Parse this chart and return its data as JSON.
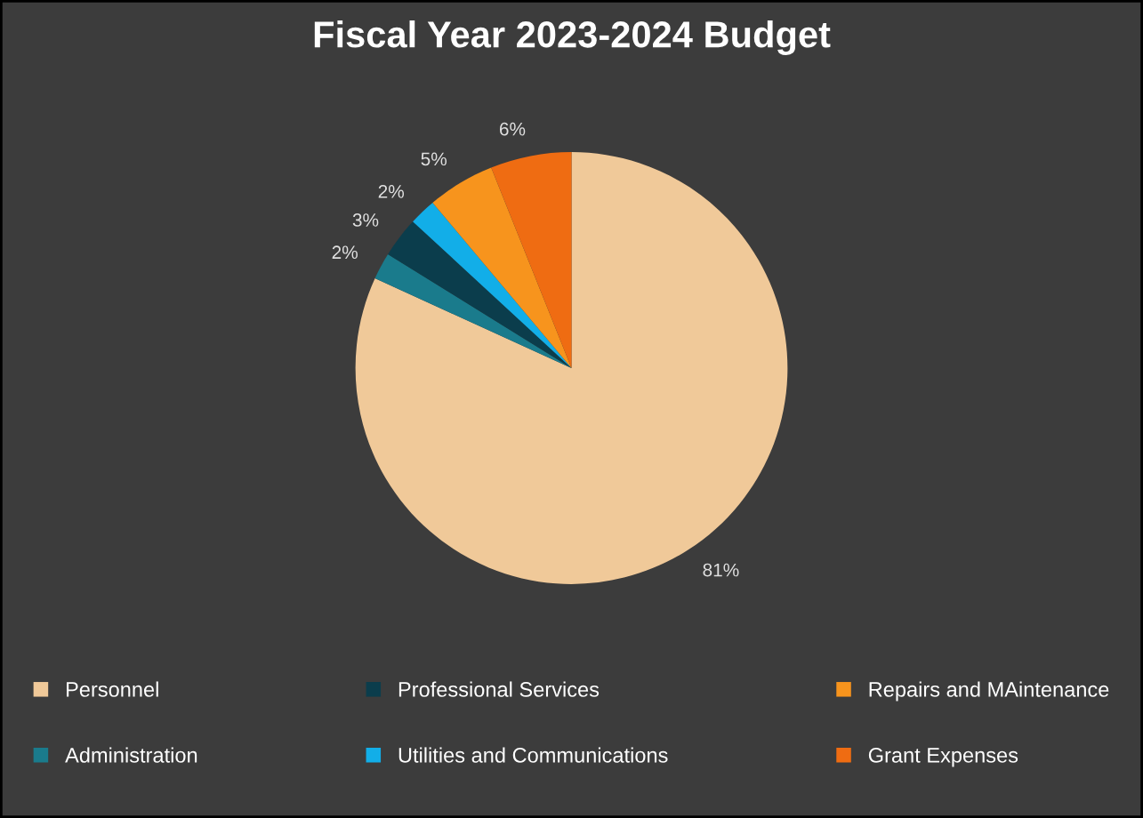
{
  "chart_data": {
    "type": "pie",
    "title": "Fiscal Year 2023-2024 Budget",
    "categories": [
      "Personnel",
      "Administration",
      "Professional Services",
      "Utilities and Communications",
      "Repairs and MAintenance",
      "Grant Expenses"
    ],
    "values": [
      81,
      2,
      3,
      2,
      5,
      6
    ],
    "value_labels": [
      "81%",
      "2%",
      "3%",
      "2%",
      "5%",
      "6%"
    ],
    "colors": [
      "#f0c999",
      "#1a7b8c",
      "#0b3d4c",
      "#12aee8",
      "#f7941d",
      "#ef6c12"
    ],
    "legend": "bottom"
  }
}
